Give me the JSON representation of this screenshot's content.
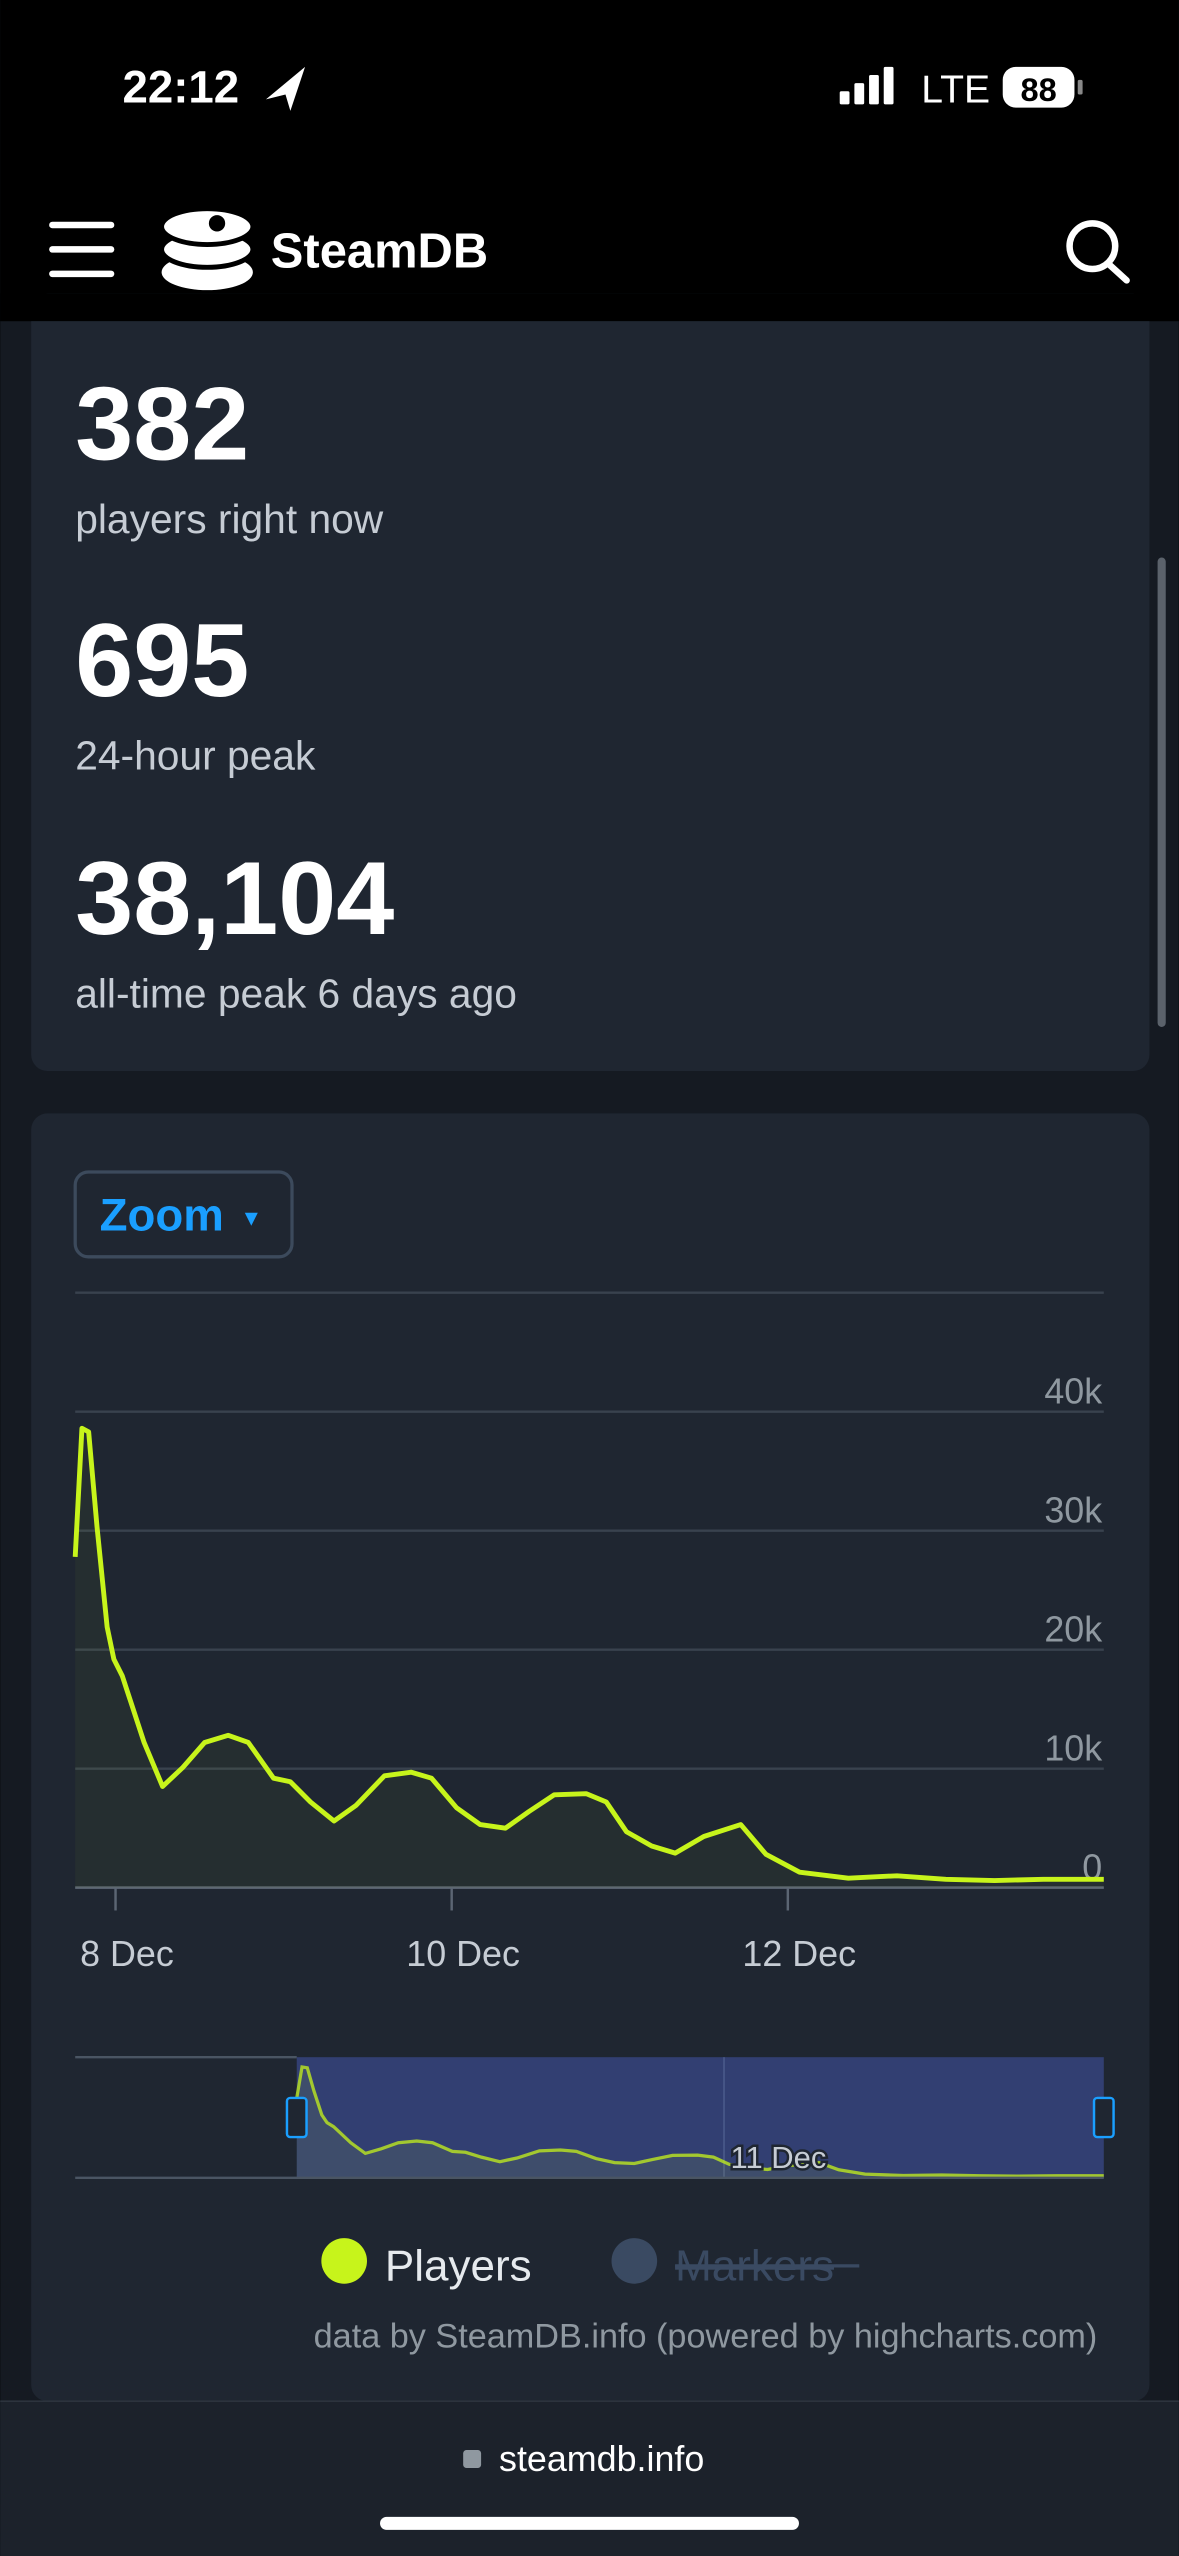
{
  "status_bar": {
    "time": "22:12",
    "network": "LTE",
    "battery": "88"
  },
  "header": {
    "title": "SteamDB"
  },
  "stats": [
    {
      "value": "382",
      "label": "players right now"
    },
    {
      "value": "695",
      "label": "24-hour peak"
    },
    {
      "value": "38,104",
      "label": "all-time peak 6 days ago"
    }
  ],
  "zoom_button": {
    "label": "Zoom",
    "arrow": "▾"
  },
  "chart_data": {
    "type": "line",
    "x": [
      7.76,
      7.8,
      7.84,
      7.89,
      7.95,
      7.99,
      8.04,
      8.17,
      8.28,
      8.4,
      8.53,
      8.67,
      8.79,
      8.94,
      9.04,
      9.16,
      9.3,
      9.43,
      9.6,
      9.76,
      9.88,
      10.03,
      10.17,
      10.32,
      10.46,
      10.61,
      10.8,
      10.92,
      11.04,
      11.19,
      11.33,
      11.5,
      11.72,
      11.87,
      12.07,
      12.36,
      12.65,
      12.94,
      13.23,
      13.52,
      13.88
    ],
    "series": [
      {
        "name": "Players",
        "color": "#c7f41b",
        "values": [
          27800,
          38600,
          38300,
          30300,
          21900,
          19200,
          17800,
          12200,
          8500,
          10100,
          12200,
          12800,
          12200,
          9200,
          8900,
          7200,
          5600,
          6900,
          9400,
          9700,
          9200,
          6700,
          5300,
          5000,
          6400,
          7800,
          7900,
          7200,
          4700,
          3500,
          2900,
          4300,
          5300,
          2800,
          1300,
          800,
          1000,
          700,
          600,
          700,
          700
        ]
      }
    ],
    "hidden_series": [
      {
        "name": "Markers",
        "color": "#3a4a62"
      }
    ],
    "xlim": [
      7.76,
      13.88
    ],
    "xticks": [
      {
        "value": 8,
        "label": "8 Dec"
      },
      {
        "value": 10,
        "label": "10 Dec"
      },
      {
        "value": 12,
        "label": "12 Dec"
      }
    ],
    "ylim": [
      0,
      50000
    ],
    "yticks": [
      {
        "value": 0,
        "label": "0"
      },
      {
        "value": 10000,
        "label": "10k"
      },
      {
        "value": 20000,
        "label": "20k"
      },
      {
        "value": 30000,
        "label": "30k"
      },
      {
        "value": 40000,
        "label": "40k"
      }
    ],
    "grid": true,
    "navigator": {
      "xlim": [
        6.08,
        13.88
      ],
      "ylim": [
        0,
        42000
      ],
      "xticks": [
        {
          "value": 11,
          "label": "11 Dec"
        }
      ]
    },
    "credit": "data by SteamDB.info (powered by highcharts.com)"
  },
  "url_bar": {
    "url": "steamdb.info"
  }
}
